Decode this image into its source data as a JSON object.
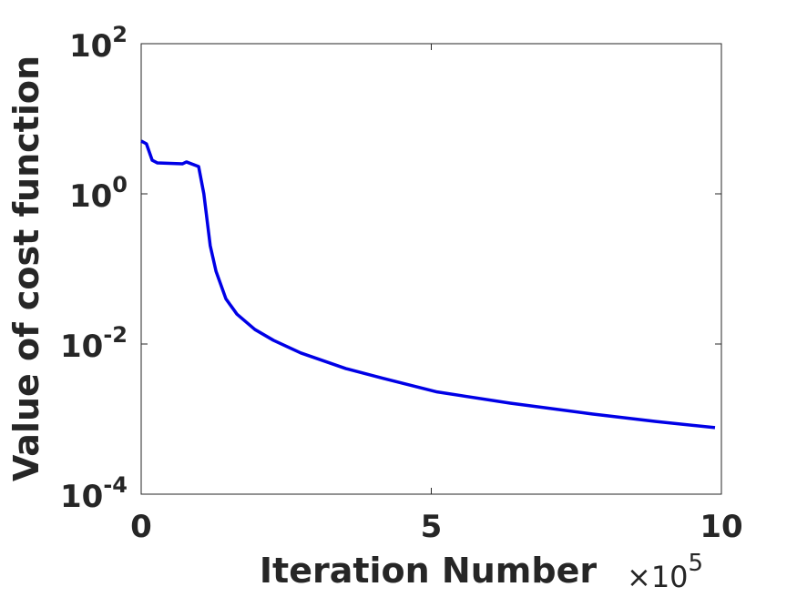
{
  "chart_data": {
    "type": "line",
    "xlabel": "Iteration Number",
    "ylabel": "Value of cost function",
    "x_scale_label": {
      "base": "×10",
      "exponent": "5"
    },
    "xlim": [
      0,
      10
    ],
    "xticks": [
      0,
      5,
      10
    ],
    "ylim": [
      0.0001,
      100
    ],
    "yscale": "log",
    "yticks": [
      {
        "value": 100,
        "label": "10",
        "exponent": "2"
      },
      {
        "value": 1,
        "label": "10",
        "exponent": "0"
      },
      {
        "value": 0.01,
        "label": "10",
        "exponent": "-2"
      },
      {
        "value": 0.0001,
        "label": "10",
        "exponent": "-4"
      }
    ],
    "grid": false,
    "series": [
      {
        "color": "#0000e6",
        "x": [
          0,
          0.09,
          0.19,
          0.28,
          0.71,
          0.78,
          0.99,
          1.08,
          1.19,
          1.29,
          1.46,
          1.65,
          1.96,
          2.28,
          2.75,
          3.53,
          4.16,
          5.1,
          6.36,
          7.77,
          8.87,
          9.89
        ],
        "values": [
          5.05,
          4.64,
          2.8,
          2.58,
          2.51,
          2.66,
          2.31,
          1.0,
          0.204,
          0.093,
          0.04,
          0.025,
          0.0156,
          0.0112,
          0.0076,
          0.0047,
          0.0035,
          0.0023,
          0.00163,
          0.00117,
          0.00093,
          0.00077
        ]
      }
    ]
  }
}
